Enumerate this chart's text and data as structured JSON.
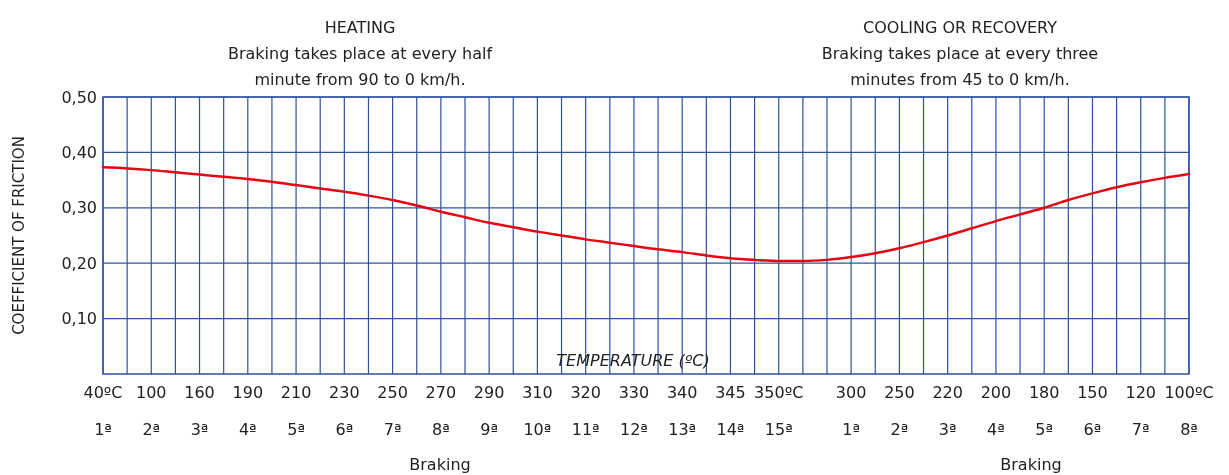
{
  "chart_data": {
    "type": "line",
    "xlabel": "TEMPERATURE (ºC)",
    "ylabel": "COEFFICIENT OF FRICTION",
    "categories": [
      "40ºC\n1ª",
      null,
      "100\n2ª",
      null,
      "160\n3ª",
      null,
      "190\n4ª",
      null,
      "210\n5ª",
      null,
      "230\n6ª",
      null,
      "250\n7ª",
      null,
      "270\n8ª",
      null,
      "290\n9ª",
      null,
      "310\n10ª",
      null,
      "320\n11ª",
      null,
      "330\n12ª",
      null,
      "340\n13ª",
      null,
      "345\n14ª",
      null,
      "350ºC\n15ª",
      null,
      null,
      "300\n1ª",
      null,
      "250\n2ª",
      null,
      "220\n3ª",
      null,
      "200\n4ª",
      null,
      "180\n5ª",
      null,
      "150\n6ª",
      null,
      "120\n7ª",
      null,
      "100ºC\n8ª"
    ],
    "series": [
      {
        "color": "#e30613",
        "values": [
          0.373,
          0.371,
          0.368,
          0.364,
          0.36,
          0.356,
          0.352,
          0.347,
          0.341,
          0.335,
          0.329,
          0.322,
          0.314,
          0.304,
          0.293,
          0.283,
          0.273,
          0.265,
          0.257,
          0.25,
          0.243,
          0.237,
          0.231,
          0.225,
          0.22,
          0.214,
          0.209,
          0.206,
          0.204,
          0.204,
          0.206,
          0.211,
          0.218,
          0.227,
          0.238,
          0.25,
          0.263,
          0.276,
          0.288,
          0.3,
          0.314,
          0.326,
          0.337,
          0.346,
          0.354,
          0.361
        ]
      }
    ],
    "ylim": [
      0,
      0.5
    ],
    "yticks": [
      {
        "value": 0.1,
        "label": "0,10"
      },
      {
        "value": 0.2,
        "label": "0,20"
      },
      {
        "value": 0.3,
        "label": "0,30"
      },
      {
        "value": 0.4,
        "label": "0,40"
      },
      {
        "value": 0.5,
        "label": "0,50"
      }
    ],
    "grid": true,
    "marker": "none",
    "line_style": "solid",
    "annotations": [
      "HEATING\nBraking takes place at every half\nminute from 90 to 0 km/h.",
      "COOLING OR RECOVERY\nBraking takes place at every three\nminutes from 45 to 0 km/h.",
      "Braking",
      "Braking"
    ]
  }
}
